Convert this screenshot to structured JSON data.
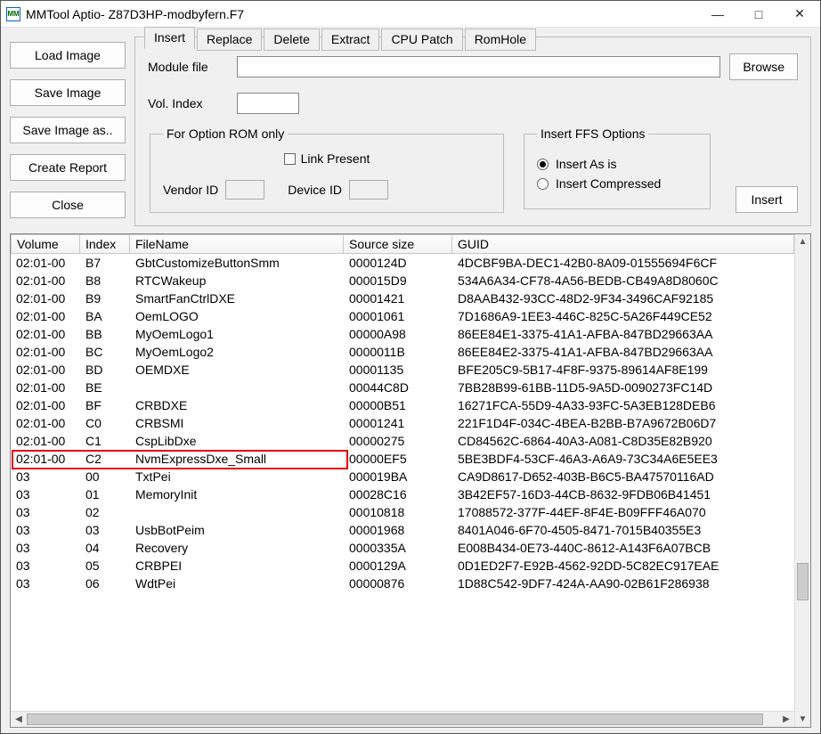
{
  "window": {
    "title": "MMTool Aptio- Z87D3HP-modbyfern.F7",
    "icon_text": "MM"
  },
  "buttons": {
    "load": "Load Image",
    "save": "Save Image",
    "saveas": "Save Image as..",
    "report": "Create Report",
    "close": "Close",
    "browse": "Browse",
    "insert": "Insert"
  },
  "tabs": [
    "Insert",
    "Replace",
    "Delete",
    "Extract",
    "CPU Patch",
    "RomHole"
  ],
  "active_tab": 0,
  "labels": {
    "module_file": "Module file",
    "vol_index": "Vol. Index",
    "rom_group": "For Option ROM only",
    "link_present": "Link Present",
    "vendor_id": "Vendor ID",
    "device_id": "Device ID",
    "ffs_group": "Insert FFS Options",
    "insert_asis": "Insert As is",
    "insert_comp": "Insert Compressed"
  },
  "ffs_selected": "asis",
  "columns": [
    "Volume",
    "Index",
    "FileName",
    "Source size",
    "GUID"
  ],
  "highlight_row": 11,
  "rows": [
    [
      "02:01-00",
      "B7",
      "GbtCustomizeButtonSmm",
      "0000124D",
      "4DCBF9BA-DEC1-42B0-8A09-01555694F6CF"
    ],
    [
      "02:01-00",
      "B8",
      "RTCWakeup",
      "000015D9",
      "534A6A34-CF78-4A56-BEDB-CB49A8D8060C"
    ],
    [
      "02:01-00",
      "B9",
      "SmartFanCtrlDXE",
      "00001421",
      "D8AAB432-93CC-48D2-9F34-3496CAF92185"
    ],
    [
      "02:01-00",
      "BA",
      "OemLOGO",
      "00001061",
      "7D1686A9-1EE3-446C-825C-5A26F449CE52"
    ],
    [
      "02:01-00",
      "BB",
      "MyOemLogo1",
      "00000A98",
      "86EE84E1-3375-41A1-AFBA-847BD29663AA"
    ],
    [
      "02:01-00",
      "BC",
      "MyOemLogo2",
      "0000011B",
      "86EE84E2-3375-41A1-AFBA-847BD29663AA"
    ],
    [
      "02:01-00",
      "BD",
      "OEMDXE",
      "00001135",
      "BFE205C9-5B17-4F8F-9375-89614AF8E199"
    ],
    [
      "02:01-00",
      "BE",
      "",
      "00044C8D",
      "7BB28B99-61BB-11D5-9A5D-0090273FC14D"
    ],
    [
      "02:01-00",
      "BF",
      "CRBDXE",
      "00000B51",
      "16271FCA-55D9-4A33-93FC-5A3EB128DEB6"
    ],
    [
      "02:01-00",
      "C0",
      "CRBSMI",
      "00001241",
      "221F1D4F-034C-4BEA-B2BB-B7A9672B06D7"
    ],
    [
      "02:01-00",
      "C1",
      "CspLibDxe",
      "00000275",
      "CD84562C-6864-40A3-A081-C8D35E82B920"
    ],
    [
      "02:01-00",
      "C2",
      "NvmExpressDxe_Small",
      "00000EF5",
      "5BE3BDF4-53CF-46A3-A6A9-73C34A6E5EE3"
    ],
    [
      "03",
      "00",
      "TxtPei",
      "000019BA",
      "CA9D8617-D652-403B-B6C5-BA47570116AD"
    ],
    [
      "03",
      "01",
      "MemoryInit",
      "00028C16",
      "3B42EF57-16D3-44CB-8632-9FDB06B41451"
    ],
    [
      "03",
      "02",
      "",
      "00010818",
      "17088572-377F-44EF-8F4E-B09FFF46A070"
    ],
    [
      "03",
      "03",
      "UsbBotPeim",
      "00001968",
      "8401A046-6F70-4505-8471-7015B40355E3"
    ],
    [
      "03",
      "04",
      "Recovery",
      "0000335A",
      "E008B434-0E73-440C-8612-A143F6A07BCB"
    ],
    [
      "03",
      "05",
      "CRBPEI",
      "0000129A",
      "0D1ED2F7-E92B-4562-92DD-5C82EC917EAE"
    ],
    [
      "03",
      "06",
      "WdtPei",
      "00000876",
      "1D88C542-9DF7-424A-AA90-02B61F286938"
    ]
  ],
  "scroll": {
    "v_thumb_top_pct": 68,
    "v_thumb_h_pct": 8,
    "h_thumb_left_pct": 0,
    "h_thumb_w_pct": 98
  },
  "colors": {
    "highlight": "#e30613",
    "panel_bg": "#f0f0f0",
    "border": "#bbbbbb"
  }
}
